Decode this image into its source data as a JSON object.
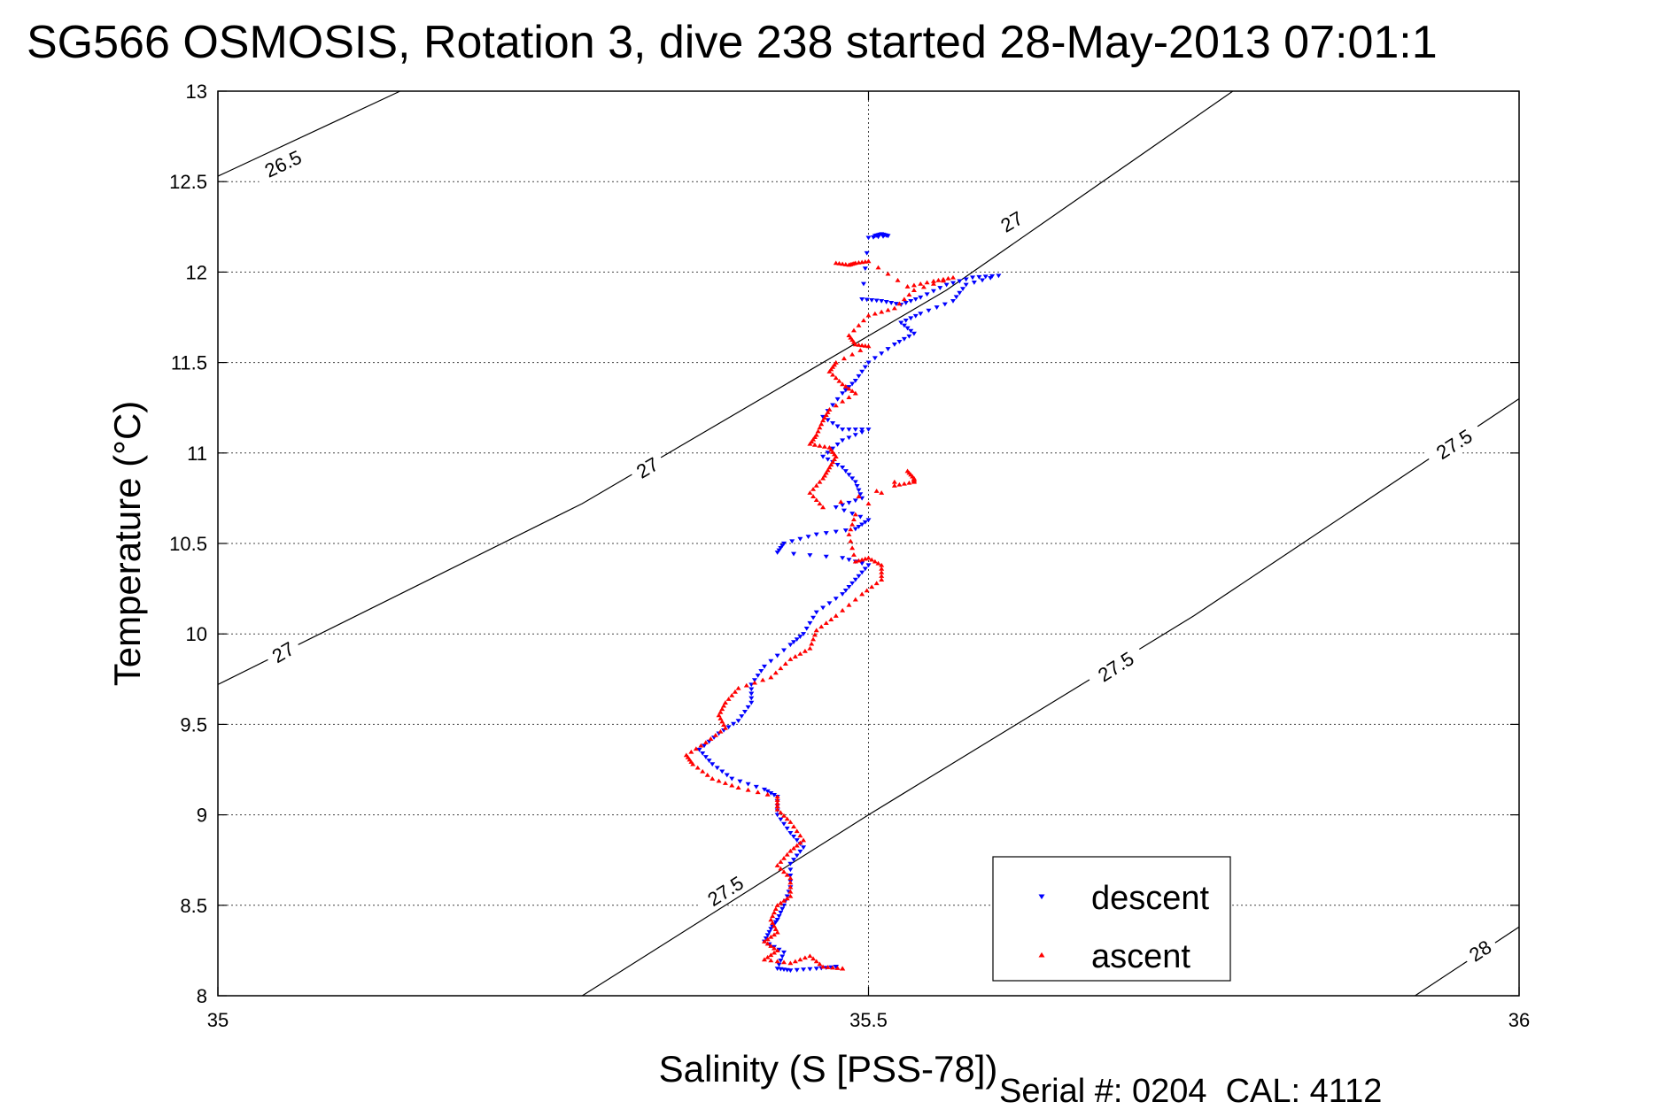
{
  "footer": {
    "serial": "Serial #: 0204  CAL: 4112"
  },
  "chart_data": {
    "type": "scatter",
    "title": "SG566 OSMOSIS, Rotation 3, dive 238 started 28-May-2013 07:01:1",
    "xlabel": "Salinity (S [PSS-78])",
    "ylabel": "Temperature (°C)",
    "xlim": [
      35,
      36
    ],
    "ylim": [
      8,
      13
    ],
    "xticks": [
      "35",
      "35.5",
      "36"
    ],
    "yticks": [
      "8",
      "8.5",
      "9",
      "9.5",
      "10",
      "10.5",
      "11",
      "11.5",
      "12",
      "12.5",
      "13"
    ],
    "grid": true,
    "legend_position": "bottom-right",
    "density_contours": [
      {
        "value": "26.5",
        "points": [
          [
            35,
            12.53
          ],
          [
            35.14,
            13.0
          ]
        ],
        "label_at": [
          35.05,
          12.6
        ]
      },
      {
        "value": "27",
        "points": [
          [
            35,
            9.72
          ],
          [
            35.28,
            10.72
          ],
          [
            35.56,
            11.9
          ],
          [
            35.78,
            13.0
          ]
        ],
        "labels_at": [
          [
            35.05,
            9.9
          ],
          [
            35.33,
            10.92
          ],
          [
            35.61,
            12.28
          ]
        ]
      },
      {
        "value": "27.5",
        "points": [
          [
            35.28,
            8.0
          ],
          [
            35.5,
            9.0
          ],
          [
            35.75,
            10.1
          ],
          [
            36,
            11.3
          ]
        ],
        "labels_at": [
          [
            35.39,
            8.58
          ],
          [
            35.69,
            9.82
          ],
          [
            35.95,
            11.05
          ]
        ]
      },
      {
        "value": "28",
        "points": [
          [
            35.92,
            8.0
          ],
          [
            36,
            8.38
          ]
        ],
        "label_at": [
          35.97,
          8.25
        ]
      }
    ],
    "series": [
      {
        "name": "descent",
        "color": "#0000ff",
        "marker": "triangle-down",
        "points": [
          [
            35.505,
            12.2
          ],
          [
            35.51,
            12.21
          ],
          [
            35.515,
            12.2
          ],
          [
            35.5,
            12.19
          ],
          [
            35.495,
            11.85
          ],
          [
            35.51,
            11.84
          ],
          [
            35.525,
            11.82
          ],
          [
            35.54,
            11.86
          ],
          [
            35.56,
            11.93
          ],
          [
            35.58,
            11.97
          ],
          [
            35.6,
            11.98
          ],
          [
            35.575,
            11.93
          ],
          [
            35.565,
            11.84
          ],
          [
            35.54,
            11.77
          ],
          [
            35.525,
            11.72
          ],
          [
            35.535,
            11.66
          ],
          [
            35.52,
            11.6
          ],
          [
            35.5,
            11.5
          ],
          [
            35.49,
            11.4
          ],
          [
            35.48,
            11.33
          ],
          [
            35.465,
            11.2
          ],
          [
            35.48,
            11.13
          ],
          [
            35.5,
            11.13
          ],
          [
            35.48,
            11.07
          ],
          [
            35.465,
            10.98
          ],
          [
            35.48,
            10.92
          ],
          [
            35.49,
            10.84
          ],
          [
            35.495,
            10.75
          ],
          [
            35.475,
            10.7
          ],
          [
            35.5,
            10.63
          ],
          [
            35.49,
            10.58
          ],
          [
            35.46,
            10.55
          ],
          [
            35.435,
            10.5
          ],
          [
            35.43,
            10.45
          ],
          [
            35.48,
            10.42
          ],
          [
            35.5,
            10.38
          ],
          [
            35.49,
            10.3
          ],
          [
            35.48,
            10.22
          ],
          [
            35.46,
            10.12
          ],
          [
            35.45,
            10.0
          ],
          [
            35.44,
            9.94
          ],
          [
            35.42,
            9.82
          ],
          [
            35.41,
            9.72
          ],
          [
            35.41,
            9.62
          ],
          [
            35.4,
            9.52
          ],
          [
            35.385,
            9.45
          ],
          [
            35.37,
            9.36
          ],
          [
            35.38,
            9.28
          ],
          [
            35.395,
            9.2
          ],
          [
            35.42,
            9.14
          ],
          [
            35.43,
            9.1
          ],
          [
            35.43,
            9.0
          ],
          [
            35.44,
            8.9
          ],
          [
            35.45,
            8.82
          ],
          [
            35.44,
            8.73
          ],
          [
            35.44,
            8.6
          ],
          [
            35.435,
            8.5
          ],
          [
            35.43,
            8.42
          ],
          [
            35.425,
            8.37
          ],
          [
            35.42,
            8.3
          ],
          [
            35.435,
            8.24
          ],
          [
            35.43,
            8.15
          ],
          [
            35.44,
            8.14
          ],
          [
            35.46,
            8.15
          ],
          [
            35.475,
            8.16
          ]
        ]
      },
      {
        "name": "ascent",
        "color": "#ff0000",
        "marker": "triangle-up",
        "points": [
          [
            35.475,
            12.05
          ],
          [
            35.485,
            12.04
          ],
          [
            35.49,
            12.05
          ],
          [
            35.5,
            12.06
          ],
          [
            35.53,
            11.92
          ],
          [
            35.55,
            11.95
          ],
          [
            35.565,
            11.97
          ],
          [
            35.535,
            11.9
          ],
          [
            35.52,
            11.8
          ],
          [
            35.5,
            11.76
          ],
          [
            35.485,
            11.65
          ],
          [
            35.49,
            11.6
          ],
          [
            35.5,
            11.59
          ],
          [
            35.475,
            11.5
          ],
          [
            35.47,
            11.45
          ],
          [
            35.48,
            11.38
          ],
          [
            35.49,
            11.33
          ],
          [
            35.47,
            11.24
          ],
          [
            35.465,
            11.18
          ],
          [
            35.46,
            11.1
          ],
          [
            35.455,
            11.05
          ],
          [
            35.47,
            11.03
          ],
          [
            35.475,
            10.98
          ],
          [
            35.47,
            10.92
          ],
          [
            35.465,
            10.86
          ],
          [
            35.455,
            10.78
          ],
          [
            35.465,
            10.7
          ],
          [
            35.52,
            10.82
          ],
          [
            35.535,
            10.84
          ],
          [
            35.535,
            10.86
          ],
          [
            35.53,
            10.9
          ],
          [
            35.49,
            10.66
          ],
          [
            35.485,
            10.55
          ],
          [
            35.49,
            10.4
          ],
          [
            35.5,
            10.42
          ],
          [
            35.51,
            10.38
          ],
          [
            35.51,
            10.3
          ],
          [
            35.495,
            10.22
          ],
          [
            35.475,
            10.1
          ],
          [
            35.46,
            10.02
          ],
          [
            35.455,
            9.92
          ],
          [
            35.44,
            9.86
          ],
          [
            35.425,
            9.76
          ],
          [
            35.4,
            9.7
          ],
          [
            35.39,
            9.62
          ],
          [
            35.385,
            9.55
          ],
          [
            35.39,
            9.48
          ],
          [
            35.375,
            9.4
          ],
          [
            35.36,
            9.33
          ],
          [
            35.365,
            9.28
          ],
          [
            35.38,
            9.2
          ],
          [
            35.4,
            9.15
          ],
          [
            35.43,
            9.1
          ],
          [
            35.43,
            9.03
          ],
          [
            35.44,
            8.96
          ],
          [
            35.45,
            8.86
          ],
          [
            35.44,
            8.8
          ],
          [
            35.43,
            8.72
          ],
          [
            35.44,
            8.65
          ],
          [
            35.44,
            8.55
          ],
          [
            35.43,
            8.5
          ],
          [
            35.425,
            8.42
          ],
          [
            35.43,
            8.35
          ],
          [
            35.42,
            8.3
          ],
          [
            35.43,
            8.25
          ],
          [
            35.42,
            8.2
          ],
          [
            35.44,
            8.18
          ],
          [
            35.455,
            8.22
          ],
          [
            35.465,
            8.16
          ],
          [
            35.48,
            8.15
          ]
        ]
      }
    ]
  }
}
